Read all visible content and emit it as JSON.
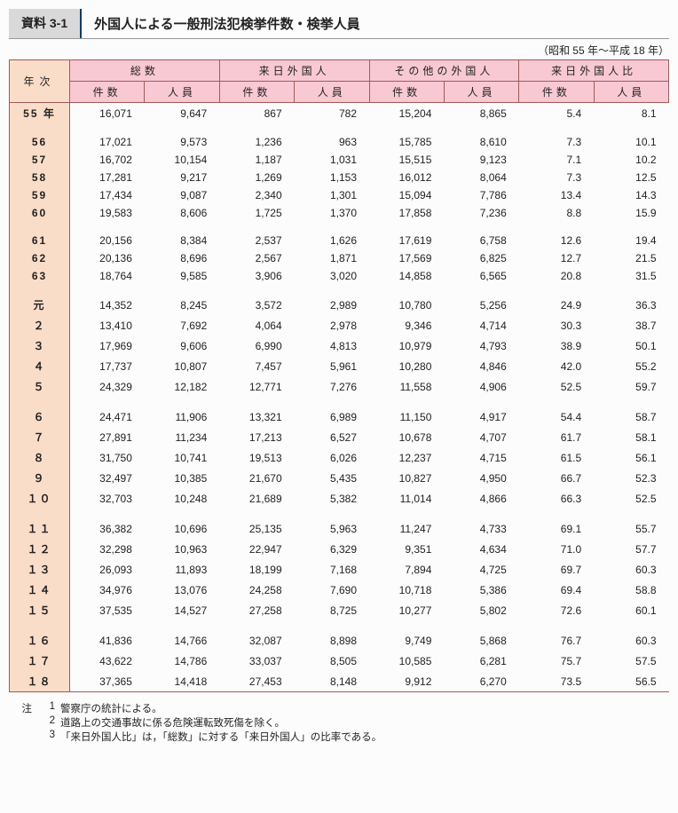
{
  "header": {
    "ref": "資料 3-1",
    "title": "外国人による一般刑法犯検挙件数・検挙人員",
    "period": "（昭和 55 年～平成 18 年）"
  },
  "columns": {
    "year": "年次",
    "groups": [
      "総数",
      "来日外国人",
      "その他の外国人",
      "来日外国人比"
    ],
    "sub_count": "件数",
    "sub_person": "人員"
  },
  "rows": [
    {
      "y": "55 年",
      "v": [
        "16,071",
        "9,647",
        "867",
        "782",
        "15,204",
        "8,865",
        "5.4",
        "8.1"
      ],
      "sep": false
    },
    {
      "y": "56",
      "v": [
        "17,021",
        "9,573",
        "1,236",
        "963",
        "15,785",
        "8,610",
        "7.3",
        "10.1"
      ],
      "sep": true
    },
    {
      "y": "57",
      "v": [
        "16,702",
        "10,154",
        "1,187",
        "1,031",
        "15,515",
        "9,123",
        "7.1",
        "10.2"
      ],
      "sep": false
    },
    {
      "y": "58",
      "v": [
        "17,281",
        "9,217",
        "1,269",
        "1,153",
        "16,012",
        "8,064",
        "7.3",
        "12.5"
      ],
      "sep": false
    },
    {
      "y": "59",
      "v": [
        "17,434",
        "9,087",
        "2,340",
        "1,301",
        "15,094",
        "7,786",
        "13.4",
        "14.3"
      ],
      "sep": false
    },
    {
      "y": "60",
      "v": [
        "19,583",
        "8,606",
        "1,725",
        "1,370",
        "17,858",
        "7,236",
        "8.8",
        "15.9"
      ],
      "sep": false
    },
    {
      "y": "61",
      "v": [
        "20,156",
        "8,384",
        "2,537",
        "1,626",
        "17,619",
        "6,758",
        "12.6",
        "19.4"
      ],
      "sep": true
    },
    {
      "y": "62",
      "v": [
        "20,136",
        "8,696",
        "2,567",
        "1,871",
        "17,569",
        "6,825",
        "12.7",
        "21.5"
      ],
      "sep": false
    },
    {
      "y": "63",
      "v": [
        "18,764",
        "9,585",
        "3,906",
        "3,020",
        "14,858",
        "6,565",
        "20.8",
        "31.5"
      ],
      "sep": false
    },
    {
      "y": "元",
      "v": [
        "14,352",
        "8,245",
        "3,572",
        "2,989",
        "10,780",
        "5,256",
        "24.9",
        "36.3"
      ],
      "sep": true
    },
    {
      "y": "２",
      "v": [
        "13,410",
        "7,692",
        "4,064",
        "2,978",
        "9,346",
        "4,714",
        "30.3",
        "38.7"
      ],
      "sep": false
    },
    {
      "y": "３",
      "v": [
        "17,969",
        "9,606",
        "6,990",
        "4,813",
        "10,979",
        "4,793",
        "38.9",
        "50.1"
      ],
      "sep": false
    },
    {
      "y": "４",
      "v": [
        "17,737",
        "10,807",
        "7,457",
        "5,961",
        "10,280",
        "4,846",
        "42.0",
        "55.2"
      ],
      "sep": false
    },
    {
      "y": "５",
      "v": [
        "24,329",
        "12,182",
        "12,771",
        "7,276",
        "11,558",
        "4,906",
        "52.5",
        "59.7"
      ],
      "sep": false
    },
    {
      "y": "６",
      "v": [
        "24,471",
        "11,906",
        "13,321",
        "6,989",
        "11,150",
        "4,917",
        "54.4",
        "58.7"
      ],
      "sep": true
    },
    {
      "y": "７",
      "v": [
        "27,891",
        "11,234",
        "17,213",
        "6,527",
        "10,678",
        "4,707",
        "61.7",
        "58.1"
      ],
      "sep": false
    },
    {
      "y": "８",
      "v": [
        "31,750",
        "10,741",
        "19,513",
        "6,026",
        "12,237",
        "4,715",
        "61.5",
        "56.1"
      ],
      "sep": false
    },
    {
      "y": "９",
      "v": [
        "32,497",
        "10,385",
        "21,670",
        "5,435",
        "10,827",
        "4,950",
        "66.7",
        "52.3"
      ],
      "sep": false
    },
    {
      "y": "１０",
      "v": [
        "32,703",
        "10,248",
        "21,689",
        "5,382",
        "11,014",
        "4,866",
        "66.3",
        "52.5"
      ],
      "sep": false
    },
    {
      "y": "１１",
      "v": [
        "36,382",
        "10,696",
        "25,135",
        "5,963",
        "11,247",
        "4,733",
        "69.1",
        "55.7"
      ],
      "sep": true
    },
    {
      "y": "１２",
      "v": [
        "32,298",
        "10,963",
        "22,947",
        "6,329",
        "9,351",
        "4,634",
        "71.0",
        "57.7"
      ],
      "sep": false
    },
    {
      "y": "１３",
      "v": [
        "26,093",
        "11,893",
        "18,199",
        "7,168",
        "7,894",
        "4,725",
        "69.7",
        "60.3"
      ],
      "sep": false
    },
    {
      "y": "１４",
      "v": [
        "34,976",
        "13,076",
        "24,258",
        "7,690",
        "10,718",
        "5,386",
        "69.4",
        "58.8"
      ],
      "sep": false
    },
    {
      "y": "１５",
      "v": [
        "37,535",
        "14,527",
        "27,258",
        "8,725",
        "10,277",
        "5,802",
        "72.6",
        "60.1"
      ],
      "sep": false
    },
    {
      "y": "１６",
      "v": [
        "41,836",
        "14,766",
        "32,087",
        "8,898",
        "9,749",
        "5,868",
        "76.7",
        "60.3"
      ],
      "sep": true
    },
    {
      "y": "１７",
      "v": [
        "43,622",
        "14,786",
        "33,037",
        "8,505",
        "10,585",
        "6,281",
        "75.7",
        "57.5"
      ],
      "sep": false
    },
    {
      "y": "１８",
      "v": [
        "37,365",
        "14,418",
        "27,453",
        "8,148",
        "9,912",
        "6,270",
        "73.5",
        "56.5"
      ],
      "sep": false
    }
  ],
  "notes": {
    "label": "注",
    "items": [
      "警察庁の統計による。",
      "道路上の交通事故に係る危険運転致死傷を除く。",
      "「来日外国人比」は，「総数」に対する「来日外国人」の比率である。"
    ]
  }
}
